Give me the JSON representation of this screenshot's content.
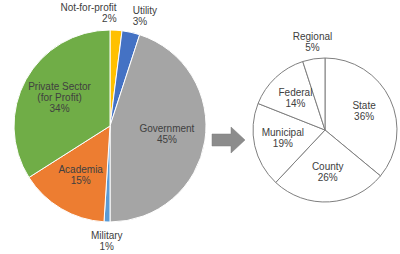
{
  "chart_data": [
    {
      "type": "pie",
      "categories": [
        "Not-for-profit",
        "Utility",
        "Government",
        "Military",
        "Academia",
        "Private Sector (for Profit)"
      ],
      "values": [
        2,
        3,
        45,
        1,
        15,
        34
      ],
      "value_labels": [
        "2%",
        "3%",
        "45%",
        "1%",
        "15%",
        "34%"
      ],
      "colors": [
        "#ffc000",
        "#4472c4",
        "#a5a5a5",
        "#5b9bd5",
        "#ed7d31",
        "#70ad47"
      ],
      "data_labels": true
    },
    {
      "type": "pie",
      "categories": [
        "State",
        "County",
        "Municipal",
        "Federal",
        "Regional"
      ],
      "values": [
        36,
        26,
        19,
        14,
        5
      ],
      "value_labels": [
        "36%",
        "26%",
        "19%",
        "14%",
        "5%"
      ],
      "colors": [
        "#ffffff",
        "#ffffff",
        "#ffffff",
        "#ffffff",
        "#ffffff"
      ],
      "data_labels": true
    }
  ]
}
